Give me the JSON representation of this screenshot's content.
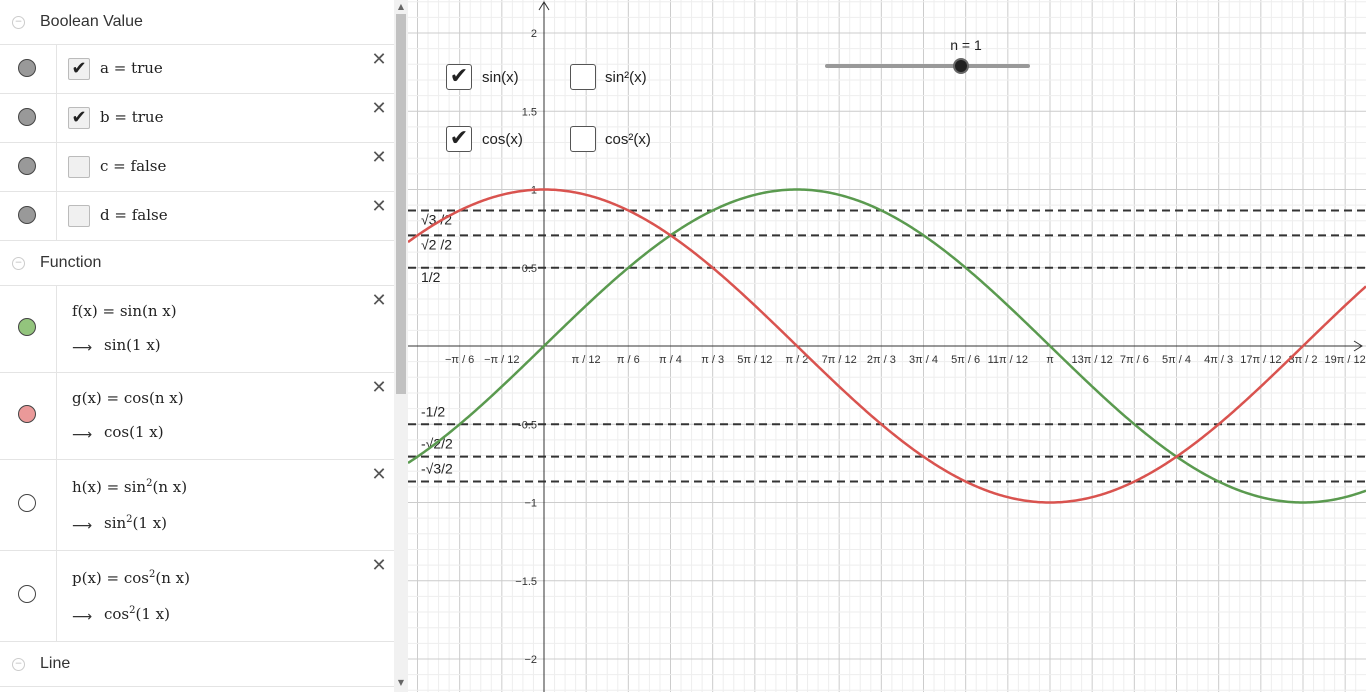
{
  "sections": {
    "boolean": "Boolean Value",
    "function": "Function",
    "line": "Line"
  },
  "booleans": [
    {
      "name": "a",
      "value": "true",
      "checked": true
    },
    {
      "name": "b",
      "value": "true",
      "checked": true
    },
    {
      "name": "c",
      "value": "false",
      "checked": false
    },
    {
      "name": "d",
      "value": "false",
      "checked": false
    }
  ],
  "functions": [
    {
      "def": "f(x) = sin(n x)",
      "value": "sin(1 x)",
      "color": "#93c47d",
      "visible": true
    },
    {
      "def": "g(x) = cos(n x)",
      "value": "cos(1 x)",
      "color": "#ea9999",
      "visible": true
    },
    {
      "def_pre": "h(x) = sin",
      "def_sup": "2",
      "def_post": "(n x)",
      "val_pre": "sin",
      "val_sup": "2",
      "val_post": "(1 x)",
      "visible": false
    },
    {
      "def_pre": "p(x) = cos",
      "def_sup": "2",
      "def_post": "(n x)",
      "val_pre": "cos",
      "val_sup": "2",
      "val_post": "(1 x)",
      "visible": false
    }
  ],
  "icons": {
    "delete": "close-icon",
    "collapse": "collapse-icon",
    "arrow": "right-arrow-icon",
    "check": "checkmark-icon"
  },
  "graph_checkboxes": [
    {
      "label": "sin(x)",
      "checked": true
    },
    {
      "label": "sin²(x)",
      "checked": false
    },
    {
      "label": "cos(x)",
      "checked": true
    },
    {
      "label": "cos²(x)",
      "checked": false
    }
  ],
  "slider": {
    "label": "n = 1",
    "value": 1,
    "min": 0,
    "max": 1.5
  },
  "colors": {
    "sin": "#5a9a4f",
    "cos": "#d9534f",
    "grid_minor": "#eeeeee",
    "grid_major": "#cccccc",
    "dashed": "#333333"
  },
  "chart_data": {
    "type": "line",
    "xlim": [
      -0.5,
      3.24
    ],
    "ylim": [
      -2.1,
      2.2
    ],
    "x_tick_labels": [
      "−π / 6",
      "−π / 12",
      "π / 12",
      "π / 6",
      "π / 4",
      "π / 3",
      "5π / 12",
      "π / 2",
      "7π / 12",
      "2π / 3",
      "3π / 4",
      "5π / 6",
      "11π / 12",
      "π",
      "13π / 12",
      "7π / 6",
      "5π / 4",
      "4π / 3",
      "17π / 12",
      "3π / 2",
      "19π / 12"
    ],
    "x_tick_values_over_pi": [
      -0.16667,
      -0.08333,
      0.08333,
      0.16667,
      0.25,
      0.33333,
      0.41667,
      0.5,
      0.58333,
      0.66667,
      0.75,
      0.83333,
      0.91667,
      1,
      1.08333,
      1.16667,
      1.25,
      1.33333,
      1.41667,
      1.5,
      1.58333
    ],
    "y_ticks": [
      2,
      1.5,
      1,
      0.5,
      -0.5,
      -1,
      -1.5,
      -2
    ],
    "y_tick_labels": [
      "2",
      "1.5",
      "1",
      "0.5",
      "-0.5",
      "−1",
      "−1.5",
      "−2"
    ],
    "series": [
      {
        "name": "sin(x)",
        "function": "sin"
      },
      {
        "name": "cos(x)",
        "function": "cos"
      }
    ],
    "reference_lines": [
      {
        "y": 0.866,
        "label": "√3 /2"
      },
      {
        "y": 0.707,
        "label": "√2 /2"
      },
      {
        "y": 0.5,
        "label": "1/2"
      },
      {
        "y": -0.5,
        "label": "-1/2"
      },
      {
        "y": -0.707,
        "label": "-√2/2"
      },
      {
        "y": -0.866,
        "label": "-√3/2"
      }
    ]
  }
}
